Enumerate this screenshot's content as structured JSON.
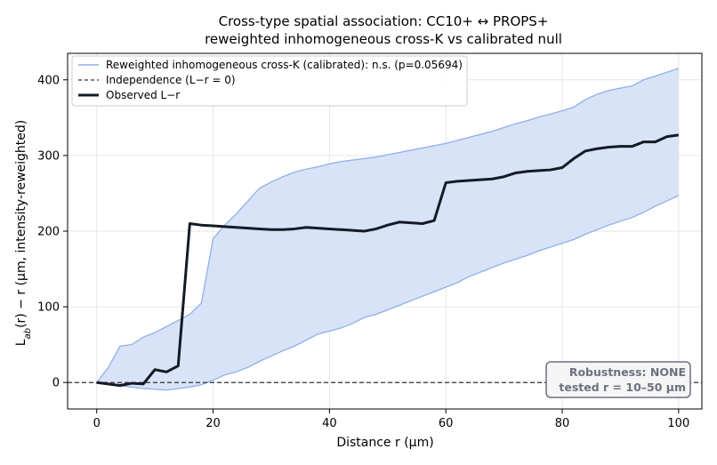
{
  "chart_data": {
    "type": "line",
    "title": "Cross-type spatial association: CC10+ ↔ PROPS+",
    "subtitle": "reweighted inhomogeneous cross-K vs calibrated null",
    "xlabel": "Distance r (µm)",
    "ylabel_prefix": "L",
    "ylabel_sub": "ab",
    "ylabel_suffix": "(r) − r  (µm, intensity-reweighted)",
    "xlim": [
      -5,
      104
    ],
    "ylim": [
      -35,
      435
    ],
    "xticks": [
      0,
      20,
      40,
      60,
      80,
      100
    ],
    "yticks": [
      0,
      100,
      200,
      300,
      400
    ],
    "grid": true,
    "legend_position": "top-left",
    "colors": {
      "envelope_fill": "#d6e2f7",
      "envelope_line": "#8eb0e6",
      "observed": "#141a26",
      "independence": "#333333",
      "robust_border": "#6b7280",
      "robust_bg": "#f5f5f5"
    },
    "legend": [
      {
        "label": "Reweighted inhomogeneous cross-K (calibrated): n.s. (p=0.05694)",
        "style": "envelope"
      },
      {
        "label": "Independence (L−r = 0)",
        "style": "dashed"
      },
      {
        "label": "Observed L−r",
        "style": "observed"
      }
    ],
    "annotation": {
      "line1": "Robustness: NONE",
      "line2": "tested r = 10–50 µm"
    },
    "independence_y": 0,
    "series": [
      {
        "name": "Reweighted inhomogeneous cross-K (calibrated): n.s. (p=0.05694)",
        "kind": "envelope",
        "x": [
          0,
          2,
          4,
          6,
          8,
          10,
          12,
          14,
          16,
          18,
          20,
          22,
          24,
          26,
          28,
          30,
          32,
          34,
          36,
          38,
          40,
          42,
          44,
          46,
          48,
          50,
          52,
          54,
          56,
          58,
          60,
          62,
          64,
          66,
          68,
          70,
          72,
          74,
          76,
          78,
          80,
          82,
          84,
          86,
          88,
          90,
          92,
          94,
          96,
          98,
          100
        ],
        "upper": [
          0,
          20,
          48,
          50,
          60,
          66,
          74,
          82,
          90,
          105,
          190,
          208,
          223,
          240,
          257,
          265,
          272,
          278,
          282,
          285,
          289,
          292,
          294,
          296,
          298,
          301,
          304,
          307,
          310,
          313,
          316,
          320,
          324,
          328,
          332,
          337,
          342,
          346,
          351,
          355,
          359,
          364,
          374,
          381,
          386,
          389,
          392,
          400,
          405,
          410,
          415
        ],
        "lower": [
          0,
          -3,
          -4,
          -6,
          -8,
          -9,
          -10,
          -8,
          -6,
          -3,
          3,
          10,
          14,
          20,
          28,
          35,
          42,
          48,
          56,
          64,
          68,
          72,
          78,
          86,
          90,
          96,
          102,
          108,
          114,
          120,
          126,
          132,
          140,
          146,
          152,
          158,
          163,
          168,
          174,
          179,
          184,
          189,
          196,
          202,
          208,
          213,
          218,
          225,
          233,
          240,
          247
        ]
      },
      {
        "name": "Observed L−r",
        "kind": "line",
        "x": [
          0,
          2,
          4,
          6,
          8,
          10,
          12,
          14,
          16,
          18,
          20,
          22,
          24,
          26,
          28,
          30,
          32,
          34,
          36,
          38,
          40,
          42,
          44,
          46,
          48,
          50,
          52,
          54,
          56,
          58,
          60,
          62,
          64,
          66,
          68,
          70,
          72,
          74,
          76,
          78,
          80,
          82,
          84,
          86,
          88,
          90,
          92,
          94,
          96,
          98,
          100
        ],
        "y": [
          0,
          -2,
          -4,
          -1,
          -2,
          17,
          14,
          22,
          210,
          208,
          207,
          206,
          205,
          204,
          203,
          202,
          202,
          203,
          205,
          204,
          203,
          202,
          201,
          200,
          203,
          208,
          212,
          211,
          210,
          214,
          264,
          266,
          267,
          268,
          269,
          272,
          277,
          279,
          280,
          281,
          284,
          296,
          306,
          309,
          311,
          312,
          312,
          318,
          318,
          325,
          327
        ]
      }
    ]
  }
}
